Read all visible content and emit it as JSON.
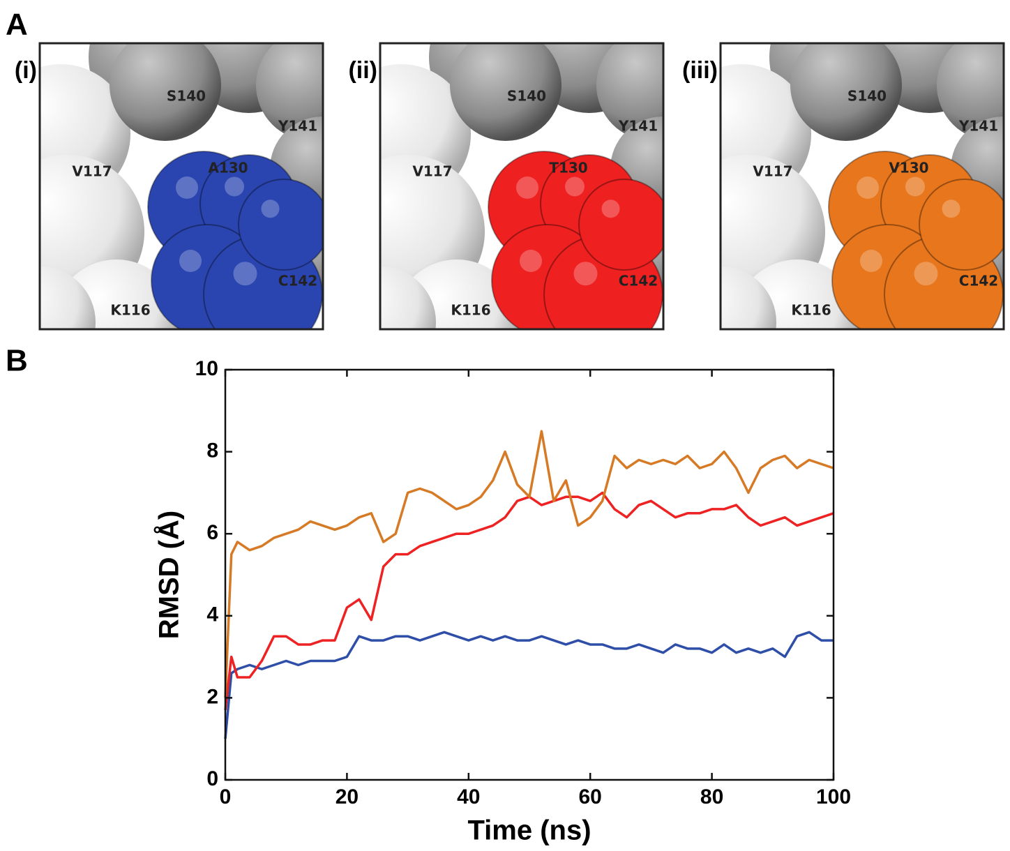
{
  "figure": {
    "panel_a": {
      "label": "A",
      "views": [
        {
          "label": "(i)",
          "color": "#2a45b0",
          "residues": [
            "S140",
            "Y141",
            "V117",
            "A130",
            "C142",
            "K116"
          ]
        },
        {
          "label": "(ii)",
          "color": "#ee2020",
          "residues": [
            "S140",
            "Y141",
            "V117",
            "T130",
            "C142",
            "K116"
          ]
        },
        {
          "label": "(iii)",
          "color": "#e8761c",
          "residues": [
            "S140",
            "Y141",
            "V117",
            "V130",
            "C142",
            "K116"
          ]
        }
      ]
    },
    "panel_b": {
      "label": "B"
    }
  },
  "chart_data": {
    "type": "line",
    "xlabel": "Time (ns)",
    "ylabel": "RMSD (Å)",
    "x": [
      0,
      1,
      2,
      4,
      6,
      8,
      10,
      12,
      14,
      16,
      18,
      20,
      22,
      24,
      26,
      28,
      30,
      32,
      34,
      36,
      38,
      40,
      42,
      44,
      46,
      48,
      50,
      52,
      54,
      56,
      58,
      60,
      62,
      64,
      66,
      68,
      70,
      72,
      74,
      76,
      78,
      80,
      82,
      84,
      86,
      88,
      90,
      92,
      94,
      96,
      98,
      100
    ],
    "series": [
      {
        "color": "#2e4ea8",
        "values": [
          1.0,
          2.6,
          2.7,
          2.8,
          2.7,
          2.8,
          2.9,
          2.8,
          2.9,
          2.9,
          2.9,
          3.0,
          3.5,
          3.4,
          3.4,
          3.5,
          3.5,
          3.4,
          3.5,
          3.6,
          3.5,
          3.4,
          3.5,
          3.4,
          3.5,
          3.4,
          3.4,
          3.5,
          3.4,
          3.3,
          3.4,
          3.3,
          3.3,
          3.2,
          3.2,
          3.3,
          3.2,
          3.1,
          3.3,
          3.2,
          3.2,
          3.1,
          3.3,
          3.1,
          3.2,
          3.1,
          3.2,
          3.0,
          3.5,
          3.6,
          3.4,
          3.4
        ]
      },
      {
        "color": "#ee2222",
        "values": [
          1.7,
          3.0,
          2.5,
          2.5,
          2.9,
          3.5,
          3.5,
          3.3,
          3.3,
          3.4,
          3.4,
          4.2,
          4.4,
          3.9,
          5.2,
          5.5,
          5.5,
          5.7,
          5.8,
          5.9,
          6.0,
          6.0,
          6.1,
          6.2,
          6.4,
          6.8,
          6.9,
          6.7,
          6.8,
          6.9,
          6.9,
          6.8,
          7.0,
          6.6,
          6.4,
          6.7,
          6.8,
          6.6,
          6.4,
          6.5,
          6.5,
          6.6,
          6.6,
          6.7,
          6.4,
          6.2,
          6.3,
          6.4,
          6.2,
          6.3,
          6.4,
          6.5
        ]
      },
      {
        "color": "#d67a25",
        "values": [
          2.0,
          5.5,
          5.8,
          5.6,
          5.7,
          5.9,
          6.0,
          6.1,
          6.3,
          6.2,
          6.1,
          6.2,
          6.4,
          6.5,
          5.8,
          6.0,
          7.0,
          7.1,
          7.0,
          6.8,
          6.6,
          6.7,
          6.9,
          7.3,
          8.0,
          7.2,
          6.9,
          8.5,
          6.8,
          7.3,
          6.2,
          6.4,
          6.8,
          7.9,
          7.6,
          7.8,
          7.7,
          7.8,
          7.7,
          7.9,
          7.6,
          7.7,
          8.0,
          7.6,
          7.0,
          7.6,
          7.8,
          7.9,
          7.6,
          7.8,
          7.7,
          7.6
        ]
      }
    ],
    "xlim": [
      0,
      100
    ],
    "xticks": [
      0,
      20,
      40,
      60,
      80,
      100
    ],
    "ylim": [
      0,
      10
    ],
    "yticks": [
      0,
      2,
      4,
      6,
      8,
      10
    ]
  }
}
